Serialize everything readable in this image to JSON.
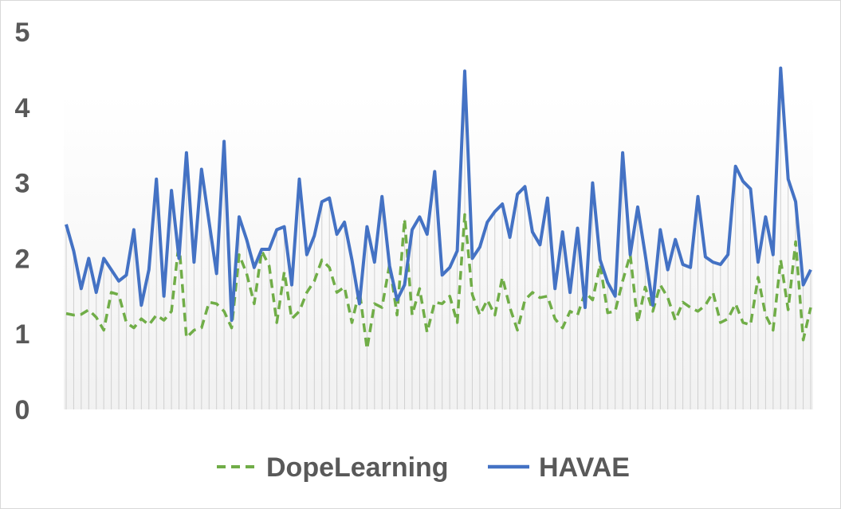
{
  "chart_data": {
    "type": "line",
    "title": "",
    "xlabel": "",
    "ylabel": "",
    "ylim": [
      0,
      5
    ],
    "yticks": [
      "0",
      "1",
      "2",
      "3",
      "4",
      "5"
    ],
    "grid": false,
    "legend_position": "bottom",
    "series": [
      {
        "name": "DopeLearning",
        "color": "#70ad47",
        "style": "dashed",
        "values": [
          1.27,
          1.25,
          1.26,
          1.32,
          1.22,
          1.05,
          1.55,
          1.52,
          1.15,
          1.08,
          1.2,
          1.12,
          1.25,
          1.18,
          1.3,
          2.22,
          0.95,
          1.05,
          1.08,
          1.42,
          1.4,
          1.3,
          1.08,
          2.05,
          1.8,
          1.4,
          2.1,
          1.9,
          1.15,
          1.82,
          1.2,
          1.3,
          1.55,
          1.7,
          1.98,
          1.88,
          1.55,
          1.62,
          1.15,
          1.58,
          0.8,
          1.4,
          1.35,
          1.92,
          1.25,
          2.52,
          1.25,
          1.6,
          1.02,
          1.42,
          1.4,
          1.5,
          1.15,
          2.58,
          1.52,
          1.25,
          1.45,
          1.25,
          1.75,
          1.35,
          1.05,
          1.45,
          1.55,
          1.48,
          1.5,
          1.2,
          1.08,
          1.3,
          1.25,
          1.55,
          1.45,
          1.92,
          1.28,
          1.3,
          1.7,
          2.05,
          1.15,
          1.62,
          1.3,
          1.65,
          1.48,
          1.18,
          1.42,
          1.35,
          1.3,
          1.38,
          1.55,
          1.15,
          1.2,
          1.4,
          1.15,
          1.12,
          1.75,
          1.25,
          1.05,
          1.98,
          1.32,
          2.22,
          0.92,
          1.35
        ]
      },
      {
        "name": "HAVAE",
        "color": "#4472c4",
        "style": "solid",
        "values": [
          2.45,
          2.1,
          1.6,
          2.0,
          1.55,
          2.0,
          1.85,
          1.7,
          1.78,
          2.38,
          1.38,
          1.85,
          3.05,
          1.5,
          2.9,
          2.0,
          3.4,
          1.95,
          3.18,
          2.48,
          1.8,
          3.55,
          1.18,
          2.55,
          2.25,
          1.88,
          2.12,
          2.12,
          2.38,
          2.42,
          1.65,
          3.05,
          2.05,
          2.3,
          2.75,
          2.8,
          2.32,
          2.48,
          1.98,
          1.4,
          2.42,
          1.95,
          2.82,
          1.9,
          1.45,
          1.65,
          2.38,
          2.55,
          2.32,
          3.15,
          1.78,
          1.88,
          2.1,
          4.48,
          2.0,
          2.15,
          2.48,
          2.62,
          2.72,
          2.28,
          2.85,
          2.95,
          2.35,
          2.18,
          2.8,
          1.6,
          2.35,
          1.55,
          2.4,
          1.35,
          3.0,
          1.98,
          1.68,
          1.5,
          3.4,
          2.05,
          2.68,
          2.05,
          1.38,
          2.38,
          1.85,
          2.25,
          1.92,
          1.88,
          2.82,
          2.02,
          1.95,
          1.92,
          2.05,
          3.22,
          3.02,
          2.92,
          1.95,
          2.55,
          2.05,
          4.52,
          3.05,
          2.75,
          1.65,
          1.85
        ]
      }
    ]
  }
}
